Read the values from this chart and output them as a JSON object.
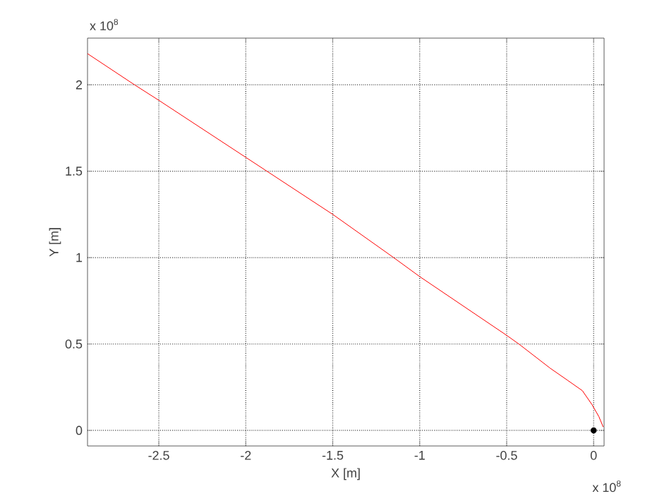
{
  "chart_data": {
    "type": "line",
    "xlabel": "X [m]",
    "ylabel": "Y [m]",
    "annotations": [
      "x 10$^{8}$",
      "x 10$^{8}$"
    ],
    "xlim": [
      -2.91,
      0.06
    ],
    "ylim": [
      -0.09,
      2.27
    ],
    "xticks": [
      -2.5,
      -2,
      -1.5,
      -1,
      -0.5,
      0
    ],
    "yticks": [
      0,
      0.5,
      1,
      1.5,
      2
    ],
    "grid": true,
    "series": [
      {
        "color": "#ff0000",
        "line_style": "solid",
        "marker": "none",
        "x": [
          -2.91,
          -2.64,
          -2.5,
          -2.0,
          -1.5,
          -1.15,
          -1.0,
          -0.75,
          -0.5,
          -0.43,
          -0.25,
          -0.15,
          -0.065,
          -0.01,
          0.03,
          0.055
        ],
        "values": [
          2.18,
          2.0,
          1.91,
          1.58,
          1.25,
          1.0,
          0.89,
          0.72,
          0.55,
          0.5,
          0.36,
          0.29,
          0.23,
          0.15,
          0.08,
          0.02
        ]
      },
      {
        "type": "scatter",
        "color": "#000000",
        "marker": "circle",
        "x": [
          0
        ],
        "values": [
          0
        ]
      }
    ]
  }
}
